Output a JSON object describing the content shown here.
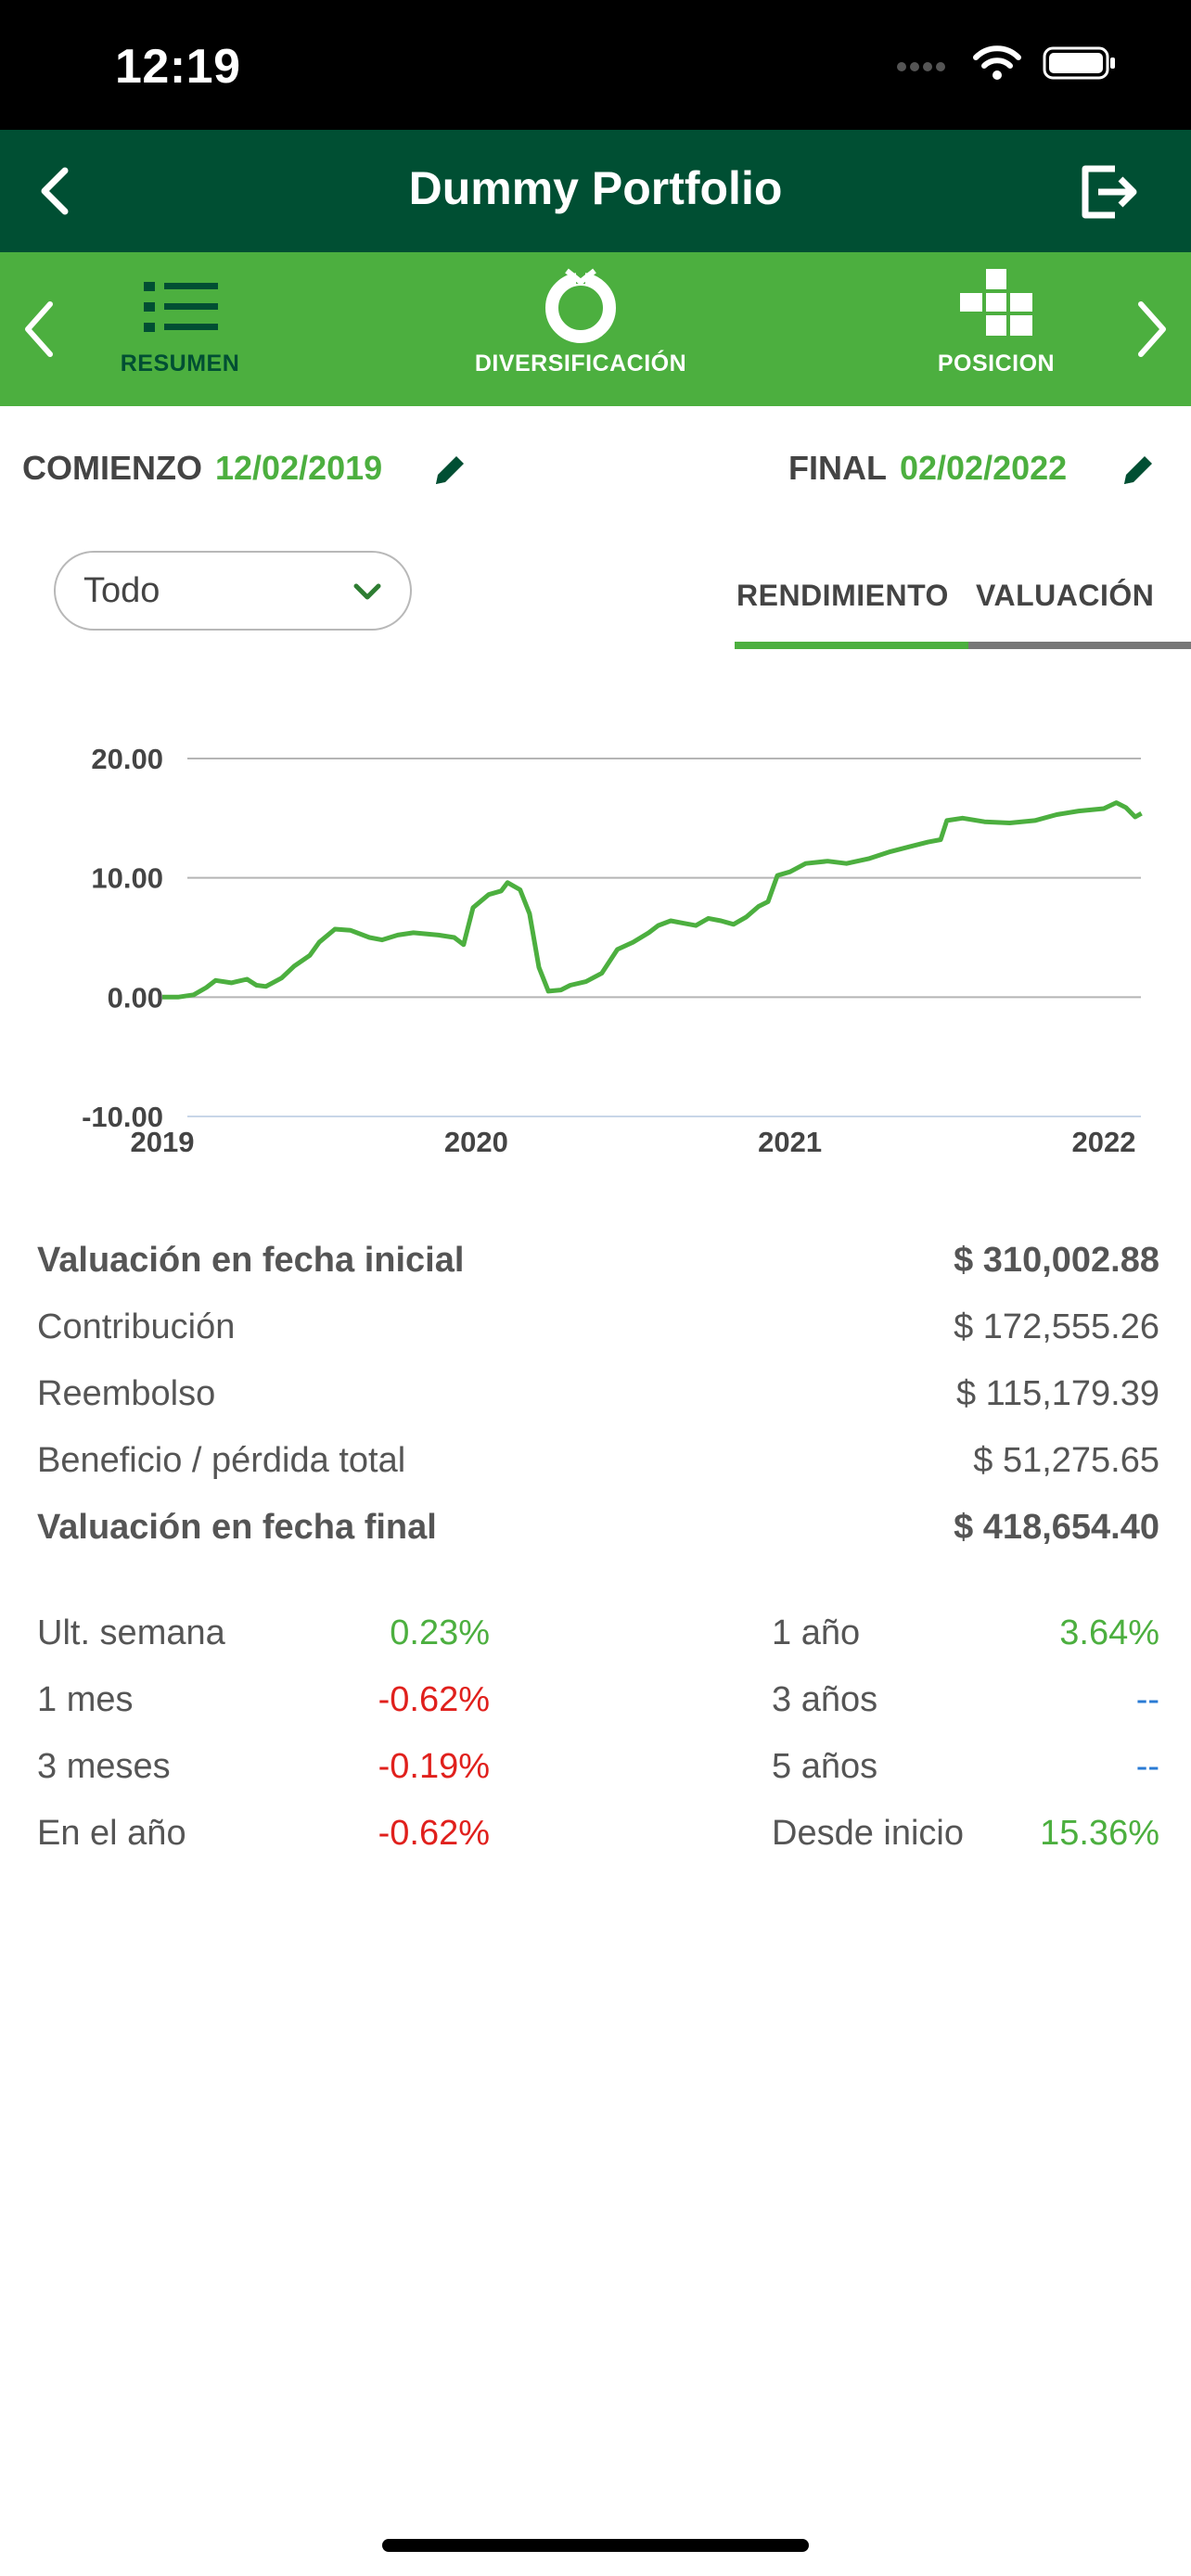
{
  "status": {
    "time": "12:19"
  },
  "header": {
    "title": "Dummy Portfolio"
  },
  "tabs": [
    {
      "label": "RESUMEN",
      "icon": "list-icon"
    },
    {
      "label": "DIVERSIFICACIÓN",
      "icon": "donut-icon"
    },
    {
      "label": "POSICION",
      "icon": "blocks-icon"
    }
  ],
  "dates": {
    "start_label": "COMIENZO",
    "start_value": "12/02/2019",
    "end_label": "FINAL",
    "end_value": "02/02/2022"
  },
  "filter": {
    "selected": "Todo"
  },
  "view_tabs": {
    "active": "RENDIMIENTO",
    "inactive": "VALUACIÓN"
  },
  "colors": {
    "primary_dark": "#004f33",
    "primary": "#4caf3f",
    "negative": "#e0201c",
    "neutral_link": "#2a7bd4"
  },
  "chart_data": {
    "type": "line",
    "ylim": [
      -10,
      20
    ],
    "yticks": [
      "20.00",
      "10.00",
      "0.00",
      "-10.00"
    ],
    "xticks": [
      "2019",
      "2020",
      "2021",
      "2022"
    ],
    "xlim": [
      2019.0,
      2022.12
    ],
    "series": [
      {
        "points": [
          [
            2019.0,
            0.0
          ],
          [
            2019.05,
            0.0
          ],
          [
            2019.1,
            0.2
          ],
          [
            2019.14,
            0.8
          ],
          [
            2019.17,
            1.4
          ],
          [
            2019.22,
            1.2
          ],
          [
            2019.27,
            1.5
          ],
          [
            2019.3,
            1.0
          ],
          [
            2019.33,
            0.9
          ],
          [
            2019.38,
            1.6
          ],
          [
            2019.42,
            2.6
          ],
          [
            2019.47,
            3.5
          ],
          [
            2019.5,
            4.6
          ],
          [
            2019.55,
            5.7
          ],
          [
            2019.6,
            5.6
          ],
          [
            2019.66,
            5.0
          ],
          [
            2019.7,
            4.8
          ],
          [
            2019.75,
            5.2
          ],
          [
            2019.8,
            5.4
          ],
          [
            2019.88,
            5.2
          ],
          [
            2019.93,
            5.0
          ],
          [
            2019.96,
            4.4
          ],
          [
            2019.99,
            7.5
          ],
          [
            2020.04,
            8.6
          ],
          [
            2020.08,
            8.9
          ],
          [
            2020.1,
            9.6
          ],
          [
            2020.14,
            9.0
          ],
          [
            2020.17,
            7.0
          ],
          [
            2020.2,
            2.5
          ],
          [
            2020.23,
            0.5
          ],
          [
            2020.27,
            0.6
          ],
          [
            2020.3,
            1.0
          ],
          [
            2020.35,
            1.3
          ],
          [
            2020.4,
            2.0
          ],
          [
            2020.45,
            4.0
          ],
          [
            2020.5,
            4.6
          ],
          [
            2020.55,
            5.4
          ],
          [
            2020.58,
            6.0
          ],
          [
            2020.62,
            6.4
          ],
          [
            2020.66,
            6.2
          ],
          [
            2020.7,
            6.0
          ],
          [
            2020.74,
            6.6
          ],
          [
            2020.78,
            6.4
          ],
          [
            2020.82,
            6.1
          ],
          [
            2020.86,
            6.7
          ],
          [
            2020.9,
            7.6
          ],
          [
            2020.93,
            8.0
          ],
          [
            2020.96,
            10.2
          ],
          [
            2021.0,
            10.5
          ],
          [
            2021.05,
            11.2
          ],
          [
            2021.12,
            11.4
          ],
          [
            2021.18,
            11.2
          ],
          [
            2021.25,
            11.6
          ],
          [
            2021.32,
            12.2
          ],
          [
            2021.38,
            12.6
          ],
          [
            2021.44,
            13.0
          ],
          [
            2021.48,
            13.2
          ],
          [
            2021.5,
            14.8
          ],
          [
            2021.55,
            15.0
          ],
          [
            2021.62,
            14.7
          ],
          [
            2021.7,
            14.6
          ],
          [
            2021.78,
            14.8
          ],
          [
            2021.85,
            15.3
          ],
          [
            2021.92,
            15.6
          ],
          [
            2022.0,
            15.8
          ],
          [
            2022.04,
            16.3
          ],
          [
            2022.07,
            15.9
          ],
          [
            2022.1,
            15.1
          ],
          [
            2022.12,
            15.4
          ]
        ]
      }
    ]
  },
  "summary": [
    {
      "label": "Valuación en fecha inicial",
      "value": "$ 310,002.88",
      "bold": true
    },
    {
      "label": "Contribución",
      "value": "$ 172,555.26",
      "bold": false
    },
    {
      "label": "Reembolso",
      "value": "$ 115,179.39",
      "bold": false
    },
    {
      "label": "Beneficio / pérdida total",
      "value": "$ 51,275.65",
      "bold": false
    },
    {
      "label": "Valuación en fecha final",
      "value": "$ 418,654.40",
      "bold": true
    }
  ],
  "performance": [
    {
      "left_label": "Ult. semana",
      "left_value": "0.23%",
      "left_tone": "pos",
      "right_label": "1 año",
      "right_value": "3.64%",
      "right_tone": "pos"
    },
    {
      "left_label": "1 mes",
      "left_value": "-0.62%",
      "left_tone": "neg",
      "right_label": "3 años",
      "right_value": "--",
      "right_tone": "na"
    },
    {
      "left_label": "3 meses",
      "left_value": "-0.19%",
      "left_tone": "neg",
      "right_label": "5 años",
      "right_value": "--",
      "right_tone": "na"
    },
    {
      "left_label": "En el año",
      "left_value": "-0.62%",
      "left_tone": "neg",
      "right_label": "Desde inicio",
      "right_value": "15.36%",
      "right_tone": "pos"
    }
  ]
}
